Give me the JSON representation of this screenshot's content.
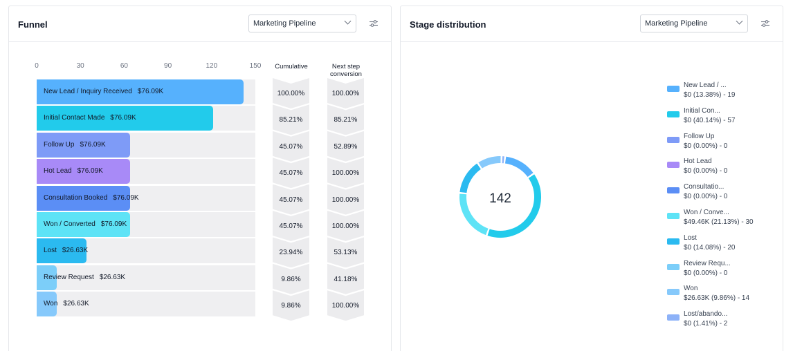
{
  "funnel": {
    "title": "Funnel",
    "pipeline_select": "Marketing Pipeline",
    "axis_ticks": [
      "0",
      "30",
      "60",
      "90",
      "120",
      "150"
    ],
    "columns": {
      "cumulative": "Cumulative",
      "next_step": "Next step conversion"
    },
    "stages": [
      {
        "name": "New Lead / Inquiry Received",
        "value": "$76.09K",
        "count": 142,
        "cumulative": "100.00%",
        "next_step": "100.00%",
        "color": "#56b1fd"
      },
      {
        "name": "Initial Contact Made",
        "value": "$76.09K",
        "count": 121,
        "cumulative": "85.21%",
        "next_step": "85.21%",
        "color": "#22cbeb"
      },
      {
        "name": "Follow Up",
        "value": "$76.09K",
        "count": 64,
        "cumulative": "45.07%",
        "next_step": "52.89%",
        "color": "#7e9bf7"
      },
      {
        "name": "Hot Lead",
        "value": "$76.09K",
        "count": 64,
        "cumulative": "45.07%",
        "next_step": "100.00%",
        "color": "#a88af7"
      },
      {
        "name": "Consultation Booked",
        "value": "$76.09K",
        "count": 64,
        "cumulative": "45.07%",
        "next_step": "100.00%",
        "color": "#5b8ef5"
      },
      {
        "name": "Won / Converted",
        "value": "$76.09K",
        "count": 64,
        "cumulative": "45.07%",
        "next_step": "100.00%",
        "color": "#5ee3f6"
      },
      {
        "name": "Lost",
        "value": "$26.63K",
        "count": 34,
        "cumulative": "23.94%",
        "next_step": "53.13%",
        "color": "#2bbaf0"
      },
      {
        "name": "Review Request",
        "value": "$26.63K",
        "count": 14,
        "cumulative": "9.86%",
        "next_step": "41.18%",
        "color": "#7ccef9"
      },
      {
        "name": "Won",
        "value": "$26.63K",
        "count": 14,
        "cumulative": "9.86%",
        "next_step": "100.00%",
        "color": "#86c9fb"
      }
    ]
  },
  "distribution": {
    "title": "Stage distribution",
    "pipeline_select": "Marketing Pipeline",
    "total": "142",
    "legend": [
      {
        "name": "New Lead / ...",
        "stat": "$0 (13.38%) - 19",
        "count": 19,
        "color": "#56b1fd"
      },
      {
        "name": "Initial Con...",
        "stat": "$0 (40.14%) - 57",
        "count": 57,
        "color": "#22cbeb"
      },
      {
        "name": "Follow Up",
        "stat": "$0 (0.00%) - 0",
        "count": 0,
        "color": "#7e9bf7"
      },
      {
        "name": "Hot Lead",
        "stat": "$0 (0.00%) - 0",
        "count": 0,
        "color": "#a88af7"
      },
      {
        "name": "Consultatio...",
        "stat": "$0 (0.00%) - 0",
        "count": 0,
        "color": "#5b8ef5"
      },
      {
        "name": "Won / Conve...",
        "stat": "$49.46K (21.13%) - 30",
        "count": 30,
        "color": "#5ee3f6"
      },
      {
        "name": "Lost",
        "stat": "$0 (14.08%) - 20",
        "count": 20,
        "color": "#2bbaf0"
      },
      {
        "name": "Review Requ...",
        "stat": "$0 (0.00%) - 0",
        "count": 0,
        "color": "#7ccef9"
      },
      {
        "name": "Won",
        "stat": "$26.63K (9.86%) - 14",
        "count": 14,
        "color": "#86c9fb"
      },
      {
        "name": "Lost/abando...",
        "stat": "$0 (1.41%) - 2",
        "count": 2,
        "color": "#8db2f8"
      }
    ]
  }
}
